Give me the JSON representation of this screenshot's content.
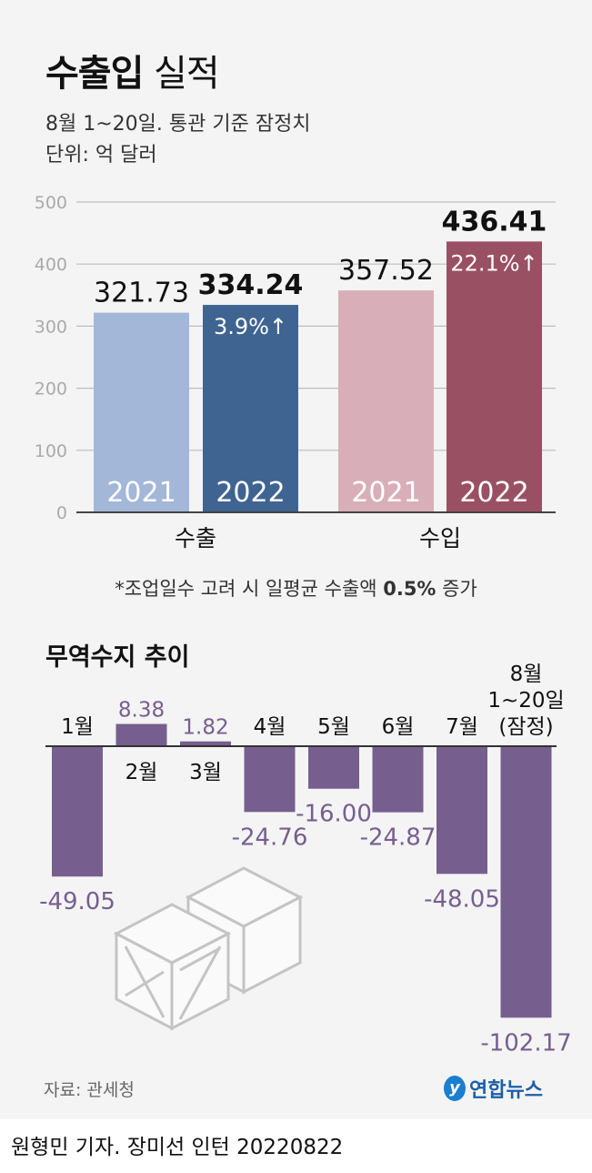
{
  "header": {
    "title_bold": "수출입",
    "title_rest": " 실적",
    "subtitle": "8월 1~20일. 통관 기준 잠정치",
    "unit": "단위: 억 달러"
  },
  "chart_data": [
    {
      "type": "bar",
      "title": "수출입 실적",
      "ylim": [
        0,
        500
      ],
      "yticks": [
        "0",
        "100",
        "200",
        "300",
        "400",
        "500"
      ],
      "categories": [
        "수출",
        "수입"
      ],
      "bars": [
        {
          "group": "수출",
          "year": "2021",
          "value": 321.73,
          "label": "321.73",
          "color": "#a3b7d8"
        },
        {
          "group": "수출",
          "year": "2022",
          "value": 334.24,
          "label": "334.24",
          "change": "3.9%↑",
          "color": "#3f6491"
        },
        {
          "group": "수입",
          "year": "2021",
          "value": 357.52,
          "label": "357.52",
          "color": "#d8afb8"
        },
        {
          "group": "수입",
          "year": "2022",
          "value": 436.41,
          "label": "436.41",
          "change": "22.1%↑",
          "color": "#9a5063"
        }
      ]
    },
    {
      "type": "bar",
      "title": "무역수지 추이",
      "color": "#765f8f",
      "categories": [
        "1월",
        "2월",
        "3월",
        "4월",
        "5월",
        "6월",
        "7월",
        "8월 1~20일 (잠정)"
      ],
      "category_lines": [
        [
          "1월"
        ],
        [
          "2월"
        ],
        [
          "3월"
        ],
        [
          "4월"
        ],
        [
          "5월"
        ],
        [
          "6월"
        ],
        [
          "7월"
        ],
        [
          "8월",
          "1~20일",
          "(잠정)"
        ]
      ],
      "values": [
        -49.05,
        8.38,
        1.82,
        -24.76,
        -16.0,
        -24.87,
        -48.05,
        -102.17
      ],
      "labels": [
        "-49.05",
        "8.38",
        "1.82",
        "-24.76",
        "-16.00",
        "-24.87",
        "-48.05",
        "-102.17"
      ]
    }
  ],
  "note": {
    "pre": "*조업일수 고려 시 일평균 수출액 ",
    "bold": "0.5%",
    "post": " 증가"
  },
  "section2_title": "무역수지 추이",
  "source": "자료: 관세청",
  "logo": {
    "mark": "y",
    "text": "연합뉴스"
  },
  "credit": "원형민 기자. 장미선 인턴  20220822"
}
